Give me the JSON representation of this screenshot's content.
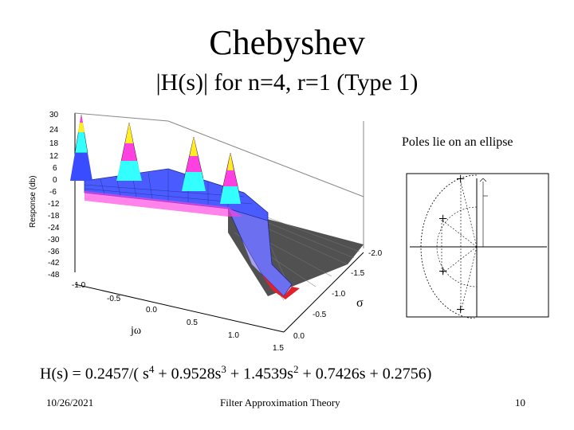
{
  "slide": {
    "title": "Chebyshev",
    "subtitle": "|H(s)| for n=4, r=1 (Type 1)",
    "poles_caption": "Poles lie on an ellipse",
    "formula": {
      "prefix": "H(s) = 0.2457/( s",
      "e1": "4",
      "t1": " + 0.9528s",
      "e2": "3",
      "t2": " + 1.4539s",
      "e3": "2",
      "t3": " + 0.7426s + 0.2756)"
    },
    "footer": {
      "date": "10/26/2021",
      "center": "Filter Approximation Theory",
      "page": "10"
    }
  },
  "plot3d": {
    "ylabel": "Response (db)",
    "sigma_label": "σ",
    "jw_label": "jω",
    "z_ticks": [
      "30",
      "24",
      "18",
      "12",
      "6",
      "0",
      "-6",
      "-12",
      "-18",
      "-24",
      "-30",
      "-36",
      "-42",
      "-48"
    ],
    "jw_ticks": [
      "-1.0",
      "-0.5",
      "0.0",
      "0.5",
      "1.0",
      "1.5"
    ],
    "sigma_ticks": [
      "-2.0",
      "-1.5",
      "-1.0",
      "-0.5",
      "0.0"
    ],
    "colors": {
      "band_red": "#e0202a",
      "band_magenta": "#ff40e0",
      "band_yellow": "#ffee22",
      "band_cyan": "#33ffff",
      "band_blue": "#3a4cff",
      "shade_dark": "#222222"
    }
  },
  "poles_plot": {
    "marker": "+"
  }
}
